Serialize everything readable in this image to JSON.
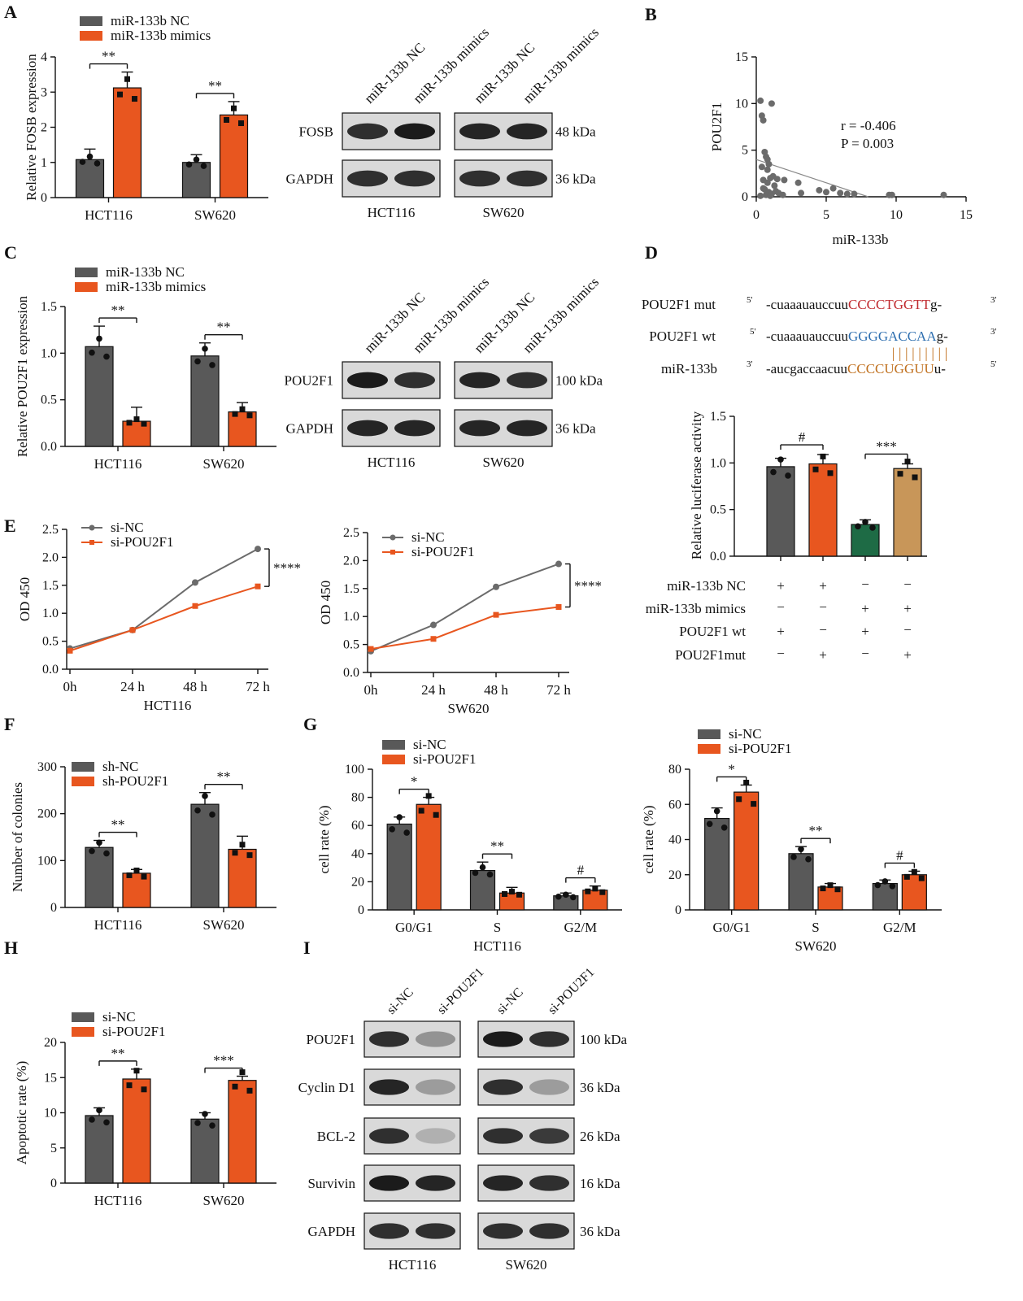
{
  "panels": [
    "A",
    "B",
    "C",
    "D",
    "E",
    "F",
    "G",
    "H",
    "I"
  ],
  "colors": {
    "nc": "#595959",
    "treat": "#E8561F",
    "green": "#1E6B45",
    "tan": "#C89659",
    "line_gray": "#6b6b6b",
    "mut_red": "#C0282D",
    "wt_blue": "#2E6FB0",
    "seed_orange": "#C0701E"
  },
  "blots": {
    "A": {
      "lanes": [
        "miR-133b NC",
        "miR-133b mimics",
        "miR-133b NC",
        "miR-133b mimics"
      ],
      "proteins": [
        "FOSB",
        "GAPDH"
      ],
      "sizes": [
        "48 kDa",
        "36 kDa"
      ],
      "cells": [
        "HCT116",
        "SW620"
      ]
    },
    "C": {
      "lanes": [
        "miR-133b NC",
        "miR-133b mimics",
        "miR-133b NC",
        "miR-133b mimics"
      ],
      "proteins": [
        "POU2F1",
        "GAPDH"
      ],
      "sizes": [
        "100 kDa",
        "36 kDa"
      ],
      "cells": [
        "HCT116",
        "SW620"
      ]
    },
    "I": {
      "lanes": [
        "si-NC",
        "si-POU2F1",
        "si-NC",
        "si-POU2F1"
      ],
      "proteins": [
        "POU2F1",
        "Cyclin D1",
        "BCL-2",
        "Survivin",
        "GAPDH"
      ],
      "sizes": [
        "100 kDa",
        "36 kDa",
        "26 kDa",
        "16 kDa",
        "36 kDa"
      ],
      "cells": [
        "HCT116",
        "SW620"
      ]
    }
  },
  "sequences": {
    "rows": [
      {
        "label": "POU2F1  mut",
        "p5": "5'",
        "pre": "-cuaaauauccuu",
        "seed": "CCCCTGGTT",
        "post": "g-",
        "p3": "3'",
        "color": "mut_red"
      },
      {
        "label": "POU2F1 wt",
        "p5": "5'",
        "pre": "-cuaaauauccuu",
        "seed": "GGGGACCAA",
        "post": "g-",
        "p3": "3'",
        "color": "wt_blue"
      },
      {
        "label": "miR-133b",
        "p5": "3'",
        "pre": "-aucgaccaacuu",
        "seed": "CCCCUGGUU",
        "post": "u-",
        "p3": "5'",
        "color": "seed_orange"
      }
    ],
    "pairing": "| | | | | | | | |"
  },
  "chart_data": [
    {
      "id": "A",
      "type": "bar",
      "ylabel": "Relative FOSB expression",
      "ylim": [
        0,
        4
      ],
      "yticks": [
        "0",
        "1",
        "2",
        "3",
        "4"
      ],
      "categories": [
        "HCT116",
        "SW620"
      ],
      "series": [
        {
          "name": "miR-133b NC",
          "values": [
            1.08,
            1.0
          ],
          "err": [
            0.3,
            0.22
          ]
        },
        {
          "name": "miR-133b mimics",
          "values": [
            3.12,
            2.35
          ],
          "err": [
            0.45,
            0.38
          ]
        }
      ],
      "sig": [
        "**",
        "**"
      ]
    },
    {
      "id": "B",
      "type": "scatter",
      "xlabel": "miR-133b",
      "ylabel": "POU2F1",
      "xlim": [
        0,
        15
      ],
      "ylim": [
        0,
        15
      ],
      "xticks": [
        "0",
        "5",
        "10",
        "15"
      ],
      "yticks": [
        "0",
        "5",
        "10",
        "15"
      ],
      "annotation": [
        "r = -0.406",
        "P = 0.003"
      ],
      "x": [
        0.3,
        0.4,
        0.5,
        1.1,
        0.6,
        0.7,
        0.8,
        0.9,
        0.4,
        1.0,
        1.2,
        0.5,
        0.8,
        1.5,
        2.0,
        1.3,
        0.6,
        0.9,
        1.1,
        0.7,
        1.6,
        3.0,
        3.2,
        4.5,
        5.0,
        5.5,
        6.0,
        6.5,
        7.0,
        9.5,
        9.7,
        13.4,
        0.8,
        1.9,
        1.4,
        0.5,
        1.0,
        0.3
      ],
      "y": [
        10.3,
        8.7,
        8.2,
        10.0,
        4.8,
        4.3,
        4.0,
        3.5,
        3.2,
        2.0,
        2.2,
        1.8,
        1.5,
        1.9,
        1.8,
        1.2,
        0.8,
        0.5,
        0.3,
        0.2,
        0.4,
        1.5,
        0.4,
        0.7,
        0.5,
        0.9,
        0.4,
        0.3,
        0.3,
        0.2,
        0.2,
        0.2,
        2.9,
        0.2,
        0.6,
        0.9,
        0.1,
        0.1
      ],
      "fit": [
        [
          0,
          4.0
        ],
        [
          8,
          0
        ]
      ]
    },
    {
      "id": "C",
      "type": "bar",
      "ylabel": "Relative POU2F1 expression",
      "ylim": [
        0,
        1.5
      ],
      "yticks": [
        "0.0",
        "0.5",
        "1.0",
        "1.5"
      ],
      "categories": [
        "HCT116",
        "SW620"
      ],
      "series": [
        {
          "name": "miR-133b NC",
          "values": [
            1.07,
            0.97
          ],
          "err": [
            0.22,
            0.14
          ]
        },
        {
          "name": "miR-133b mimics",
          "values": [
            0.27,
            0.37
          ],
          "err": [
            0.15,
            0.1
          ]
        }
      ],
      "sig": [
        "**",
        "**"
      ]
    },
    {
      "id": "D",
      "type": "bar",
      "ylabel": "Relative luciferase activity",
      "ylim": [
        0,
        1.5
      ],
      "yticks": [
        "0.0",
        "0.5",
        "1.0",
        "1.5"
      ],
      "values": [
        0.96,
        0.99,
        0.34,
        0.94
      ],
      "err": [
        0.09,
        0.1,
        0.05,
        0.05
      ],
      "bar_colors": [
        "nc",
        "treat",
        "green",
        "tan"
      ],
      "conditions": [
        {
          "label": "miR-133b NC",
          "signs": [
            "+",
            "+",
            "−",
            "−"
          ]
        },
        {
          "label": "miR-133b mimics",
          "signs": [
            "−",
            "−",
            "+",
            "+"
          ]
        },
        {
          "label": "POU2F1 wt",
          "signs": [
            "+",
            "−",
            "+",
            "−"
          ]
        },
        {
          "label": "POU2F1mut",
          "signs": [
            "−",
            "+",
            "−",
            "+"
          ]
        }
      ],
      "sig": [
        {
          "pair": [
            0,
            1
          ],
          "label": "#"
        },
        {
          "pair": [
            2,
            3
          ],
          "label": "***"
        }
      ]
    },
    {
      "id": "E1",
      "type": "line",
      "ylabel": "OD 450",
      "xlabel": "HCT116",
      "ylim": [
        0,
        2.5
      ],
      "yticks": [
        "0.0",
        "0.5",
        "1.0",
        "1.5",
        "2.0",
        "2.5"
      ],
      "categories": [
        "0h",
        "24 h",
        "48 h",
        "72 h"
      ],
      "series": [
        {
          "name": "si-NC",
          "values": [
            0.37,
            0.7,
            1.55,
            2.15
          ]
        },
        {
          "name": "si-POU2F1",
          "values": [
            0.33,
            0.7,
            1.13,
            1.48
          ]
        }
      ],
      "sig": "****"
    },
    {
      "id": "E2",
      "type": "line",
      "ylabel": "OD 450",
      "xlabel": "SW620",
      "ylim": [
        0,
        2.5
      ],
      "yticks": [
        "0.0",
        "0.5",
        "1.0",
        "1.5",
        "2.0",
        "2.5"
      ],
      "categories": [
        "0h",
        "24 h",
        "48 h",
        "72 h"
      ],
      "series": [
        {
          "name": "si-NC",
          "values": [
            0.38,
            0.85,
            1.53,
            1.94
          ]
        },
        {
          "name": "si-POU2F1",
          "values": [
            0.42,
            0.6,
            1.03,
            1.17
          ]
        }
      ],
      "sig": "****"
    },
    {
      "id": "F",
      "type": "bar",
      "ylabel": "Number of colonies",
      "ylim": [
        0,
        300
      ],
      "yticks": [
        "0",
        "100",
        "200",
        "300"
      ],
      "categories": [
        "HCT116",
        "SW620"
      ],
      "series": [
        {
          "name": "sh-NC",
          "values": [
            128,
            220
          ],
          "err": [
            15,
            25
          ]
        },
        {
          "name": "sh-POU2F1",
          "values": [
            73,
            124
          ],
          "err": [
            8,
            28
          ]
        }
      ],
      "sig": [
        "**",
        "**"
      ]
    },
    {
      "id": "G1",
      "type": "bar",
      "ylabel": "cell rate (%)",
      "xlabel": "HCT116",
      "ylim": [
        0,
        100
      ],
      "yticks": [
        "0",
        "20",
        "40",
        "60",
        "80",
        "100"
      ],
      "categories": [
        "G0/G1",
        "S",
        "G2/M"
      ],
      "series": [
        {
          "name": "si-NC",
          "values": [
            61,
            28,
            10
          ],
          "err": [
            5,
            6,
            2
          ]
        },
        {
          "name": "si-POU2F1",
          "values": [
            75,
            12,
            14
          ],
          "err": [
            5,
            4,
            3
          ]
        }
      ],
      "sig": [
        "*",
        "**",
        "#"
      ]
    },
    {
      "id": "G2",
      "type": "bar",
      "ylabel": "cell rate (%)",
      "xlabel": "SW620",
      "ylim": [
        0,
        80
      ],
      "yticks": [
        "0",
        "20",
        "40",
        "60",
        "80"
      ],
      "categories": [
        "G0/G1",
        "S",
        "G2/M"
      ],
      "series": [
        {
          "name": "si-NC",
          "values": [
            52,
            32,
            15
          ],
          "err": [
            6,
            4,
            2
          ]
        },
        {
          "name": "si-POU2F1",
          "values": [
            67,
            13,
            20
          ],
          "err": [
            4,
            2,
            2
          ]
        }
      ],
      "sig": [
        "*",
        "**",
        "#"
      ]
    },
    {
      "id": "H",
      "type": "bar",
      "ylabel": "Apoptotic rate (%)",
      "ylim": [
        0,
        20
      ],
      "yticks": [
        "0",
        "5",
        "10",
        "15",
        "20"
      ],
      "categories": [
        "HCT116",
        "SW620"
      ],
      "series": [
        {
          "name": "si-NC",
          "values": [
            9.6,
            9.1
          ],
          "err": [
            1.1,
            0.9
          ]
        },
        {
          "name": "si-POU2F1",
          "values": [
            14.8,
            14.6
          ],
          "err": [
            1.4,
            0.6
          ]
        }
      ],
      "sig": [
        "**",
        "***"
      ]
    }
  ]
}
